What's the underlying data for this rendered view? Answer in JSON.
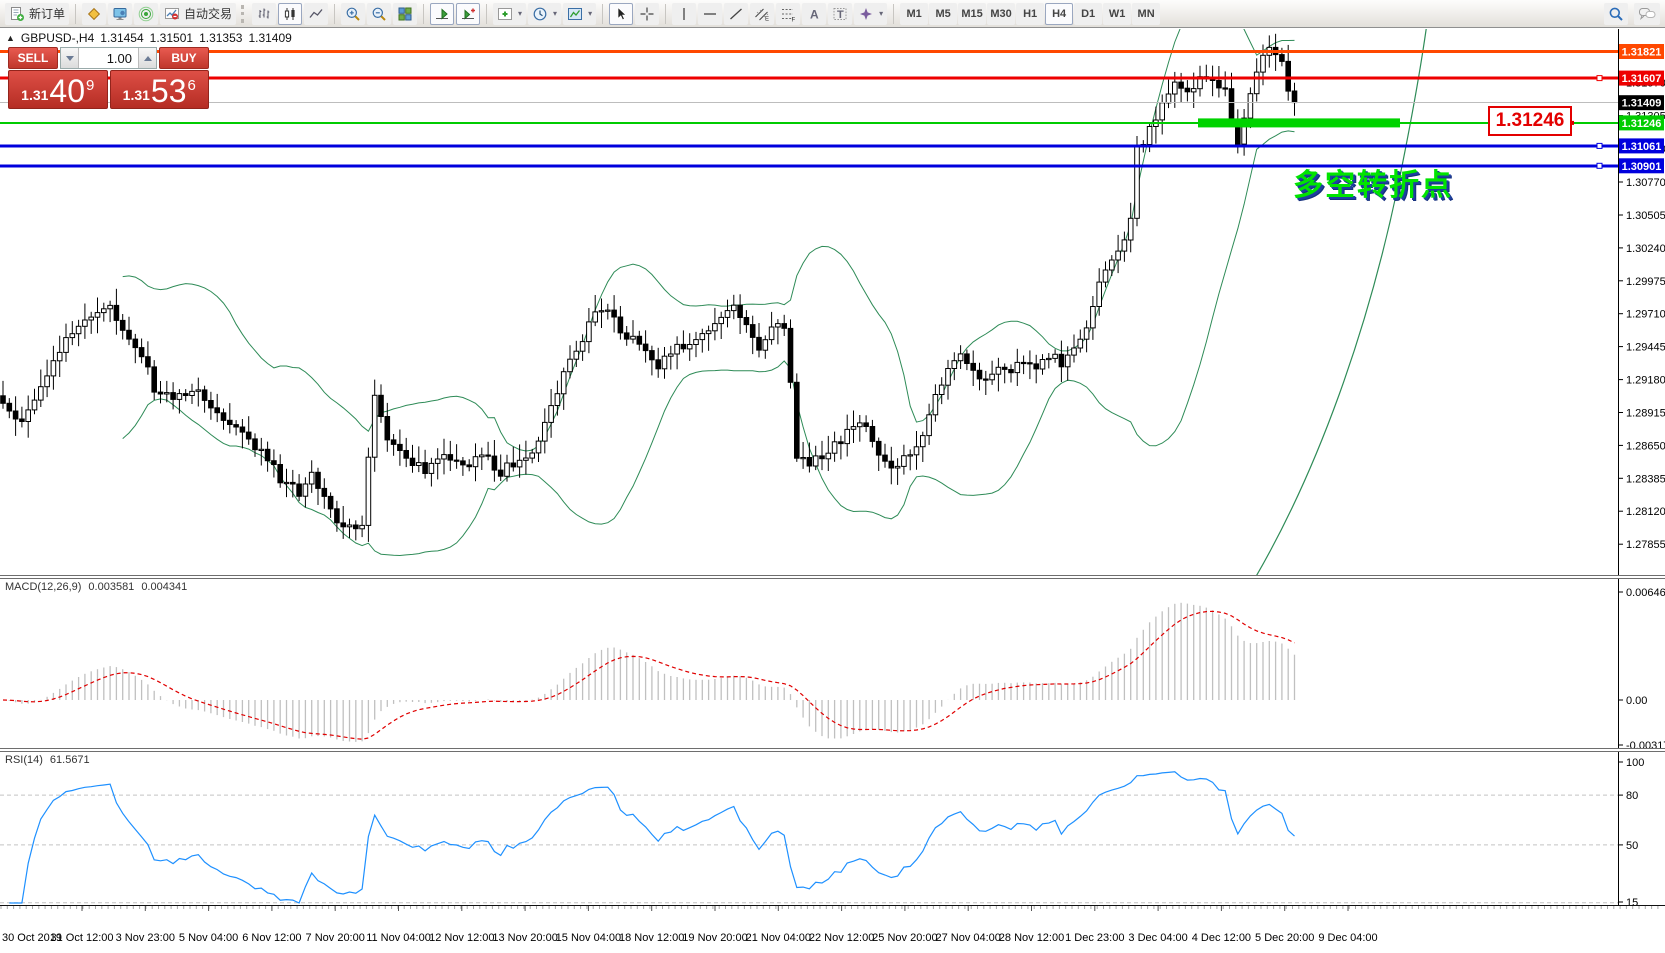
{
  "toolbar": {
    "new_order_label": "新订单",
    "autotrading_label": "自动交易",
    "timeframes": [
      "M1",
      "M5",
      "M15",
      "M30",
      "H1",
      "H4",
      "D1",
      "W1",
      "MN"
    ],
    "active_timeframe": "H4"
  },
  "header": {
    "symbol": "GBPUSD-,H4",
    "open": "1.31454",
    "high": "1.31501",
    "low": "1.31353",
    "close": "1.31409"
  },
  "trade_panel": {
    "sell_label": "SELL",
    "buy_label": "BUY",
    "volume": "1.00",
    "sell_price": {
      "prefix": "1.31",
      "big": "40",
      "sup": "9"
    },
    "buy_price": {
      "prefix": "1.31",
      "big": "53",
      "sup": "6"
    }
  },
  "main_chart": {
    "levels": [
      {
        "name": "resistance-line-upper",
        "price": 1.31821,
        "label": "1.31821",
        "color": "#ff4800",
        "width": 3,
        "handle": false
      },
      {
        "name": "resistance-line-lower",
        "price": 1.31607,
        "label": "1.31607",
        "color": "#ee0000",
        "width": 3,
        "handle": true
      },
      {
        "name": "current-price-line",
        "price": 1.31409,
        "label": "1.31409",
        "color": "#000000",
        "line_color": "#bdbdbd",
        "width": 1,
        "handle": false
      },
      {
        "name": "pivot-line",
        "price": 1.31246,
        "label": "1.31246",
        "color": "#00cc00",
        "width": 2,
        "handle": false
      },
      {
        "name": "support-line-upper",
        "price": 1.31061,
        "label": "1.31061",
        "color": "#0000dd",
        "width": 3,
        "handle": true
      },
      {
        "name": "support-line-lower",
        "price": 1.30901,
        "label": "1.30901",
        "color": "#0000dd",
        "width": 3,
        "handle": true
      }
    ],
    "support_bar": {
      "price": 1.31246,
      "color": "#00d300"
    },
    "axis_ticks": [
      "1.31570",
      "1.31305",
      "1.31040",
      "1.30770",
      "1.30505",
      "1.30240",
      "1.29975",
      "1.29710",
      "1.29445",
      "1.29180",
      "1.28915",
      "1.28650",
      "1.28385",
      "1.28120",
      "1.27855",
      "1.27590"
    ],
    "callout": {
      "text": "1.31246"
    },
    "annotation": {
      "text": "多空转折点"
    }
  },
  "macd_panel": {
    "name": "MACD(12,26,9)",
    "value_main": "0.003581",
    "value_signal": "0.004341",
    "axis_ticks": [
      "0.006468",
      "0.00",
      "-0.003171"
    ]
  },
  "rsi_panel": {
    "name": "RSI(14)",
    "value": "61.5671",
    "axis_ticks": [
      "100",
      "80",
      "50",
      "15"
    ],
    "levels": [
      80,
      50,
      15
    ]
  },
  "time_axis": [
    "30 Oct 2019",
    "31 Oct 12:00",
    "3 Nov 23:00",
    "5 Nov 04:00",
    "6 Nov 12:00",
    "7 Nov 20:00",
    "11 Nov 04:00",
    "12 Nov 12:00",
    "13 Nov 20:00",
    "15 Nov 04:00",
    "18 Nov 12:00",
    "19 Nov 20:00",
    "21 Nov 04:00",
    "22 Nov 12:00",
    "25 Nov 20:00",
    "27 Nov 04:00",
    "28 Nov 12:00",
    "1 Dec 23:00",
    "3 Dec 04:00",
    "4 Dec 12:00",
    "5 Dec 20:00",
    "9 Dec 04:00"
  ],
  "chart_data": {
    "type": "candlestick",
    "symbol": "GBPUSD",
    "timeframe": "H4",
    "title": "GBPUSD-,H4",
    "ohlc_header": {
      "open": 1.31454,
      "high": 1.31501,
      "low": 1.31353,
      "close": 1.31409
    },
    "y_axis_range": [
      1.2746,
      1.32
    ],
    "grid": false,
    "bars": 206,
    "close_path_anchors": [
      [
        0,
        1.2895
      ],
      [
        3,
        1.2882
      ],
      [
        6,
        1.2915
      ],
      [
        9,
        1.2942
      ],
      [
        12,
        1.2958
      ],
      [
        14,
        1.2972
      ],
      [
        17,
        1.2978
      ],
      [
        19,
        1.2962
      ],
      [
        22,
        1.294
      ],
      [
        24,
        1.2912
      ],
      [
        27,
        1.29
      ],
      [
        30,
        1.2912
      ],
      [
        33,
        1.2898
      ],
      [
        36,
        1.288
      ],
      [
        39,
        1.2868
      ],
      [
        41,
        1.286
      ],
      [
        44,
        1.2838
      ],
      [
        47,
        1.2828
      ],
      [
        49,
        1.2842
      ],
      [
        51,
        1.282
      ],
      [
        53,
        1.2806
      ],
      [
        55,
        1.2798
      ],
      [
        57,
        1.2804
      ],
      [
        58,
        1.2858
      ],
      [
        59,
        1.2902
      ],
      [
        61,
        1.287
      ],
      [
        64,
        1.2854
      ],
      [
        67,
        1.2846
      ],
      [
        70,
        1.286
      ],
      [
        73,
        1.2848
      ],
      [
        76,
        1.2856
      ],
      [
        79,
        1.2844
      ],
      [
        82,
        1.2854
      ],
      [
        85,
        1.2868
      ],
      [
        88,
        1.2908
      ],
      [
        90,
        1.2932
      ],
      [
        92,
        1.2952
      ],
      [
        94,
        1.2968
      ],
      [
        96,
        1.2978
      ],
      [
        98,
        1.296
      ],
      [
        101,
        1.2944
      ],
      [
        104,
        1.293
      ],
      [
        107,
        1.2942
      ],
      [
        110,
        1.2952
      ],
      [
        113,
        1.2964
      ],
      [
        116,
        1.298
      ],
      [
        118,
        1.2958
      ],
      [
        120,
        1.2946
      ],
      [
        122,
        1.296
      ],
      [
        124,
        1.2958
      ],
      [
        125,
        1.2918
      ],
      [
        126,
        1.2858
      ],
      [
        128,
        1.285
      ],
      [
        131,
        1.2862
      ],
      [
        134,
        1.2874
      ],
      [
        136,
        1.2886
      ],
      [
        138,
        1.287
      ],
      [
        140,
        1.2852
      ],
      [
        142,
        1.2846
      ],
      [
        144,
        1.286
      ],
      [
        146,
        1.2874
      ],
      [
        148,
        1.2902
      ],
      [
        150,
        1.2928
      ],
      [
        152,
        1.2938
      ],
      [
        154,
        1.2926
      ],
      [
        156,
        1.2916
      ],
      [
        158,
        1.293
      ],
      [
        160,
        1.2922
      ],
      [
        162,
        1.2934
      ],
      [
        164,
        1.2926
      ],
      [
        166,
        1.2938
      ],
      [
        168,
        1.293
      ],
      [
        170,
        1.2944
      ],
      [
        172,
        1.2958
      ],
      [
        174,
        1.2996
      ],
      [
        176,
        1.3012
      ],
      [
        178,
        1.3034
      ],
      [
        179,
        1.3048
      ],
      [
        180,
        1.3104
      ],
      [
        182,
        1.3118
      ],
      [
        184,
        1.3142
      ],
      [
        186,
        1.3158
      ],
      [
        188,
        1.3148
      ],
      [
        190,
        1.3162
      ],
      [
        192,
        1.3155
      ],
      [
        194,
        1.3148
      ],
      [
        195,
        1.3128
      ],
      [
        196,
        1.311
      ],
      [
        197,
        1.313
      ],
      [
        198,
        1.3152
      ],
      [
        200,
        1.3176
      ],
      [
        201,
        1.3184
      ],
      [
        202,
        1.3178
      ],
      [
        203,
        1.317
      ],
      [
        204,
        1.3152
      ],
      [
        205,
        1.31409
      ]
    ],
    "indicators": {
      "bollinger": {
        "period": 20,
        "deviation": 2,
        "color": "#2e8b57"
      },
      "macd": {
        "fast": 12,
        "slow": 26,
        "signal": 9,
        "histogram_color": "#c0c0c0",
        "signal_color": "#e00000"
      },
      "rsi": {
        "period": 14,
        "color": "#1e90ff"
      }
    },
    "horizontal_levels": [
      1.31821,
      1.31607,
      1.31409,
      1.31246,
      1.31061,
      1.30901
    ]
  }
}
